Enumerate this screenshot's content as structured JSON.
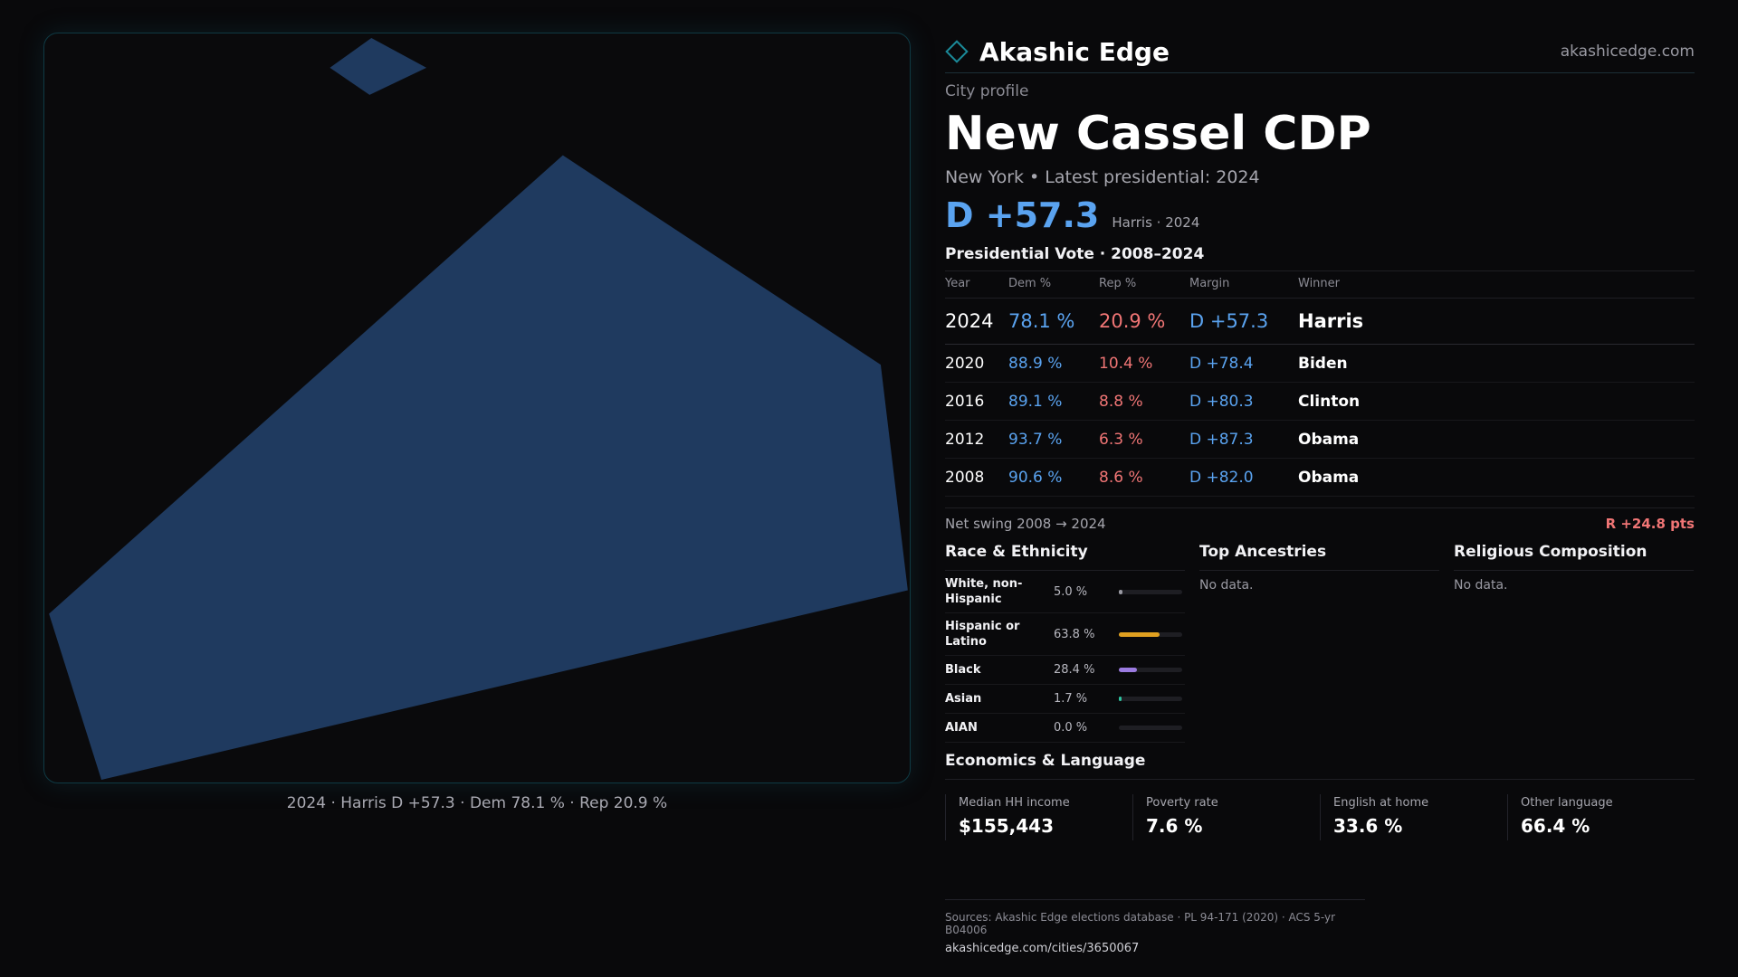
{
  "map": {
    "caption": "2024 · Harris D +57.3 · Dem 78.1 % · Rep 20.9 %",
    "fill_color": "#1f3a5f"
  },
  "brand": {
    "name": "Akashic Edge",
    "url": "akashicedge.com"
  },
  "profile": {
    "kicker": "City profile",
    "city": "New Cassel CDP",
    "subline": "New York  • Latest presidential: 2024",
    "headline_margin": "D +57.3",
    "headline_sub": "Harris · 2024"
  },
  "votes": {
    "title": "Presidential Vote · 2008–2024",
    "headers": [
      "Year",
      "Dem %",
      "Rep %",
      "Margin",
      "Winner"
    ],
    "rows": [
      {
        "year": "2024",
        "dem": "78.1 %",
        "rep": "20.9 %",
        "margin": "D +57.3",
        "winner": "Harris"
      },
      {
        "year": "2020",
        "dem": "88.9 %",
        "rep": "10.4 %",
        "margin": "D +78.4",
        "winner": "Biden"
      },
      {
        "year": "2016",
        "dem": "89.1 %",
        "rep": "8.8 %",
        "margin": "D +80.3",
        "winner": "Clinton"
      },
      {
        "year": "2012",
        "dem": "93.7 %",
        "rep": "6.3 %",
        "margin": "D +87.3",
        "winner": "Obama"
      },
      {
        "year": "2008",
        "dem": "90.6 %",
        "rep": "8.6 %",
        "margin": "D +82.0",
        "winner": "Obama"
      }
    ],
    "swing_label": "Net swing 2008 → 2024",
    "swing_value": "R +24.8 pts"
  },
  "race": {
    "title": "Race & Ethnicity",
    "items": [
      {
        "label": "White, non-Hispanic",
        "pct": "5.0 %",
        "value": 5.0,
        "color": "#9a9aa3"
      },
      {
        "label": "Hispanic or Latino",
        "pct": "63.8 %",
        "value": 63.8,
        "color": "#e0a020"
      },
      {
        "label": "Black",
        "pct": "28.4 %",
        "value": 28.4,
        "color": "#9b7be0"
      },
      {
        "label": "Asian",
        "pct": "1.7 %",
        "value": 1.7,
        "color": "#2ec4a0"
      },
      {
        "label": "AIAN",
        "pct": "0.0 %",
        "value": 0.0,
        "color": "#9a9aa3"
      }
    ]
  },
  "ancestries": {
    "title": "Top Ancestries",
    "empty": "No data."
  },
  "religion": {
    "title": "Religious Composition",
    "empty": "No data."
  },
  "economics": {
    "title": "Economics & Language",
    "cards": [
      {
        "label": "Median HH income",
        "value": "$155,443"
      },
      {
        "label": "Poverty rate",
        "value": "7.6 %"
      },
      {
        "label": "English at home",
        "value": "33.6 %"
      },
      {
        "label": "Other language",
        "value": "66.4 %"
      }
    ]
  },
  "footer": {
    "sources": "Sources: Akashic Edge elections database · PL 94-171 (2020) · ACS 5-yr B04006",
    "url": "akashicedge.com/cities/3650067"
  }
}
